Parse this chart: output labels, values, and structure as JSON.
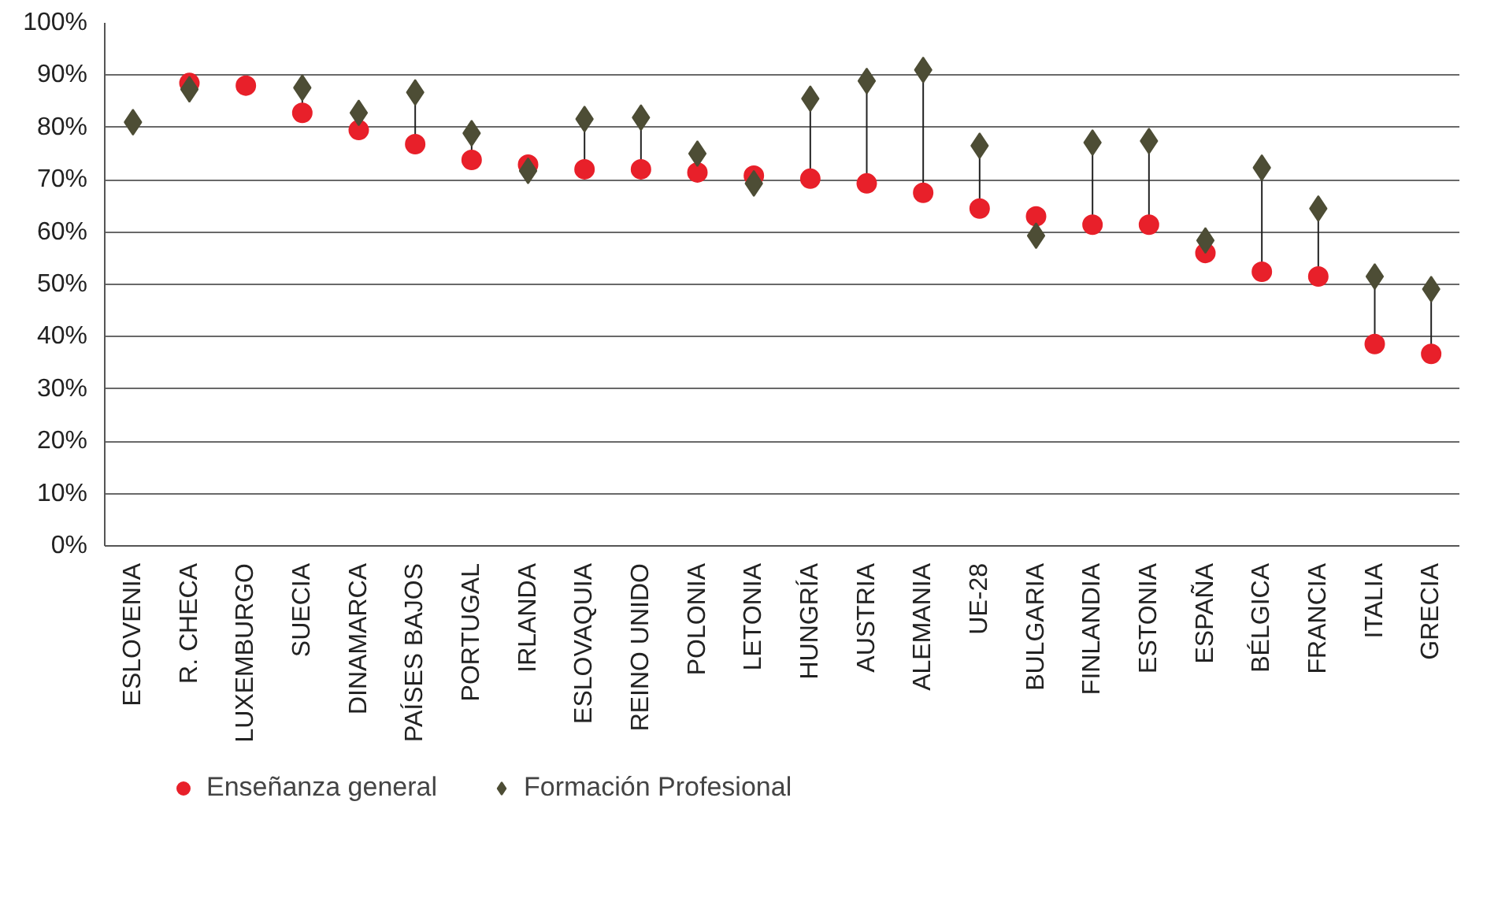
{
  "chart_data": {
    "type": "scatter",
    "categories": [
      "ESLOVENIA",
      "R. CHECA",
      "LUXEMBURGO",
      "SUECIA",
      "DINAMARCA",
      "PAÍSES BAJOS",
      "PORTUGAL",
      "IRLANDA",
      "ESLOVAQUIA",
      "REINO UNIDO",
      "POLONIA",
      "LETONIA",
      "HUNGRÍA",
      "AUSTRIA",
      "ALEMANIA",
      "UE-28",
      "BULGARIA",
      "FINLANDIA",
      "ESTONIA",
      "ESPAÑA",
      "BÉLGICA",
      "FRANCIA",
      "ITALIA",
      "GRECIA"
    ],
    "series": [
      {
        "name": "Enseñanza general",
        "color": "#e8202a",
        "marker": "circle",
        "values": [
          null,
          88.5,
          88,
          82.8,
          79.5,
          76.8,
          73.8,
          72.9,
          72,
          72,
          71.4,
          70.8,
          70.2,
          69.3,
          67.5,
          64.5,
          63,
          61.4,
          61.4,
          56,
          52.4,
          51.5,
          38.6,
          36.7
        ]
      },
      {
        "name": "Formación Profesional",
        "color": "#4d4d35",
        "marker": "diamond",
        "values": [
          81,
          87.3,
          null,
          87.6,
          82.8,
          86.7,
          78.9,
          71.7,
          81.6,
          81.9,
          75,
          69.3,
          85.5,
          88.9,
          91,
          76.5,
          59.3,
          77.1,
          77.4,
          58.4,
          72.3,
          64.5,
          51.5,
          49.1
        ]
      }
    ],
    "ylim": [
      0,
      100
    ],
    "yticks": [
      {
        "value": 0,
        "label": "0%"
      },
      {
        "value": 10,
        "label": "10%"
      },
      {
        "value": 20,
        "label": "20%"
      },
      {
        "value": 30,
        "label": "30%"
      },
      {
        "value": 40,
        "label": "40%"
      },
      {
        "value": 50,
        "label": "50%"
      },
      {
        "value": 60,
        "label": "60%"
      },
      {
        "value": 70,
        "label": "70%"
      },
      {
        "value": 80,
        "label": "80%"
      },
      {
        "value": 90,
        "label": "90%"
      },
      {
        "value": 100,
        "label": "100%"
      }
    ],
    "grid": "y",
    "legend": "bottom"
  }
}
